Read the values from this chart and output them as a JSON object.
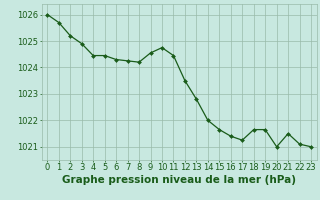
{
  "x": [
    0,
    1,
    2,
    3,
    4,
    5,
    6,
    7,
    8,
    9,
    10,
    11,
    12,
    13,
    14,
    15,
    16,
    17,
    18,
    19,
    20,
    21,
    22,
    23
  ],
  "y": [
    1026.0,
    1025.7,
    1025.2,
    1024.9,
    1024.45,
    1024.45,
    1024.3,
    1024.25,
    1024.2,
    1024.55,
    1024.75,
    1024.45,
    1023.5,
    1022.8,
    1022.0,
    1021.65,
    1021.4,
    1021.25,
    1021.65,
    1021.65,
    1021.0,
    1021.5,
    1021.1,
    1021.0
  ],
  "line_color": "#1a5c1a",
  "marker_color": "#1a5c1a",
  "bg_color": "#c8e8e0",
  "grid_color": "#99bbaa",
  "xlabel": "Graphe pression niveau de la mer (hPa)",
  "xlabel_fontsize": 7.5,
  "xlabel_color": "#1a5c1a",
  "ylabel_ticks": [
    1021,
    1022,
    1023,
    1024,
    1025,
    1026
  ],
  "xtick_labels": [
    "0",
    "1",
    "2",
    "3",
    "4",
    "5",
    "6",
    "7",
    "8",
    "9",
    "10",
    "11",
    "12",
    "13",
    "14",
    "15",
    "16",
    "17",
    "18",
    "19",
    "20",
    "21",
    "22",
    "23"
  ],
  "ylim": [
    1020.5,
    1026.4
  ],
  "xlim": [
    -0.5,
    23.5
  ],
  "tick_fontsize": 6.0,
  "tick_color": "#1a5c1a"
}
